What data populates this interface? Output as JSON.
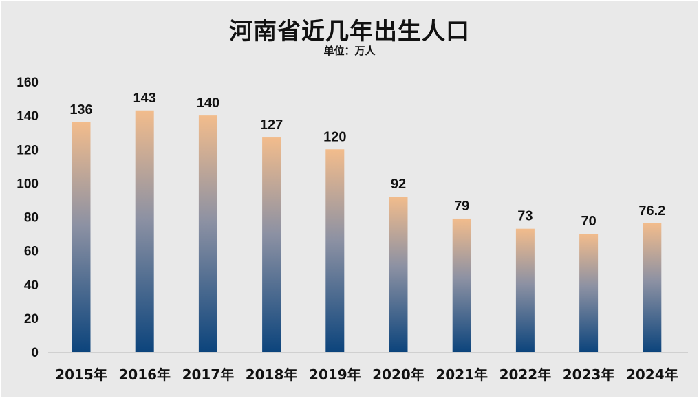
{
  "colors": {
    "bar_top": "#f2bc8c",
    "bar_mid": "#8c91a3",
    "bar_bottom": "#0c447c",
    "background": "#e9e9e9",
    "axis": "#d0d0d0"
  },
  "chart_data": {
    "type": "bar",
    "title": "河南省近几年出生人口",
    "subtitle": "单位：万人",
    "categories": [
      "2015年",
      "2016年",
      "2017年",
      "2018年",
      "2019年",
      "2020年",
      "2021年",
      "2022年",
      "2023年",
      "2024年"
    ],
    "values": [
      136,
      143,
      140,
      127,
      120,
      92,
      79,
      73,
      70,
      76.2
    ],
    "data_labels": [
      "136",
      "143",
      "140",
      "127",
      "120",
      "92",
      "79",
      "73",
      "70",
      "76.2"
    ],
    "yticks": [
      "0",
      "20",
      "40",
      "60",
      "80",
      "100",
      "120",
      "140",
      "160"
    ],
    "ylim": [
      0,
      160
    ],
    "grid": false,
    "legend": "none"
  }
}
